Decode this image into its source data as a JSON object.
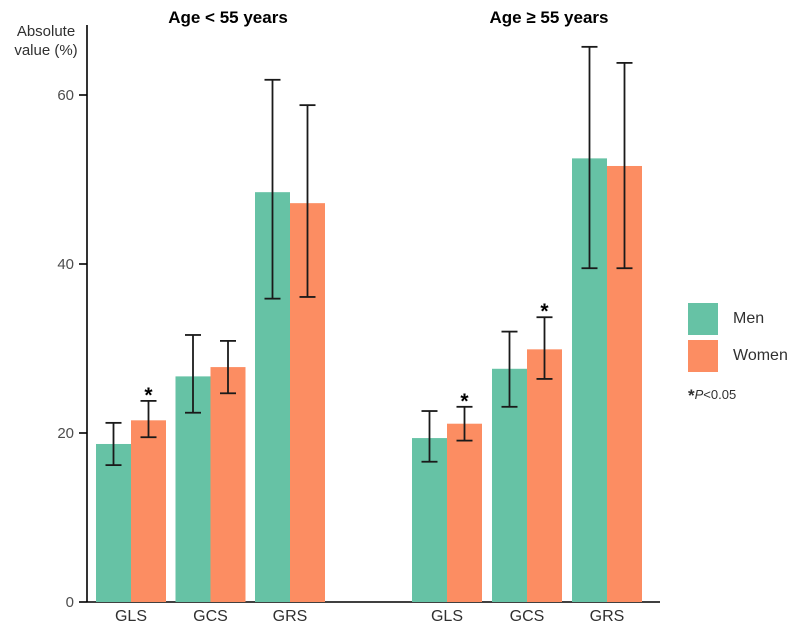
{
  "chart_data": {
    "type": "bar",
    "ylabel": "Absolute value (%)",
    "yticks": [
      0,
      20,
      40,
      60
    ],
    "ylim": [
      0,
      68
    ],
    "grid": false,
    "legend_position": "right",
    "categories": [
      "GLS",
      "GCS",
      "GRS"
    ],
    "panels": [
      {
        "title": "Age < 55 years",
        "series": [
          {
            "name": "Men",
            "color": "#66C2A5",
            "values": [
              18.7,
              26.7,
              48.5
            ],
            "err_low": [
              16.2,
              22.4,
              35.9
            ],
            "err_high": [
              21.2,
              31.6,
              61.8
            ],
            "significant": [
              false,
              false,
              false
            ]
          },
          {
            "name": "Women",
            "color": "#FC8D62",
            "values": [
              21.5,
              27.8,
              47.2
            ],
            "err_low": [
              19.5,
              24.7,
              36.1
            ],
            "err_high": [
              23.8,
              30.9,
              58.8
            ],
            "significant": [
              true,
              false,
              false
            ]
          }
        ]
      },
      {
        "title": "Age ≥ 55 years",
        "series": [
          {
            "name": "Men",
            "color": "#66C2A5",
            "values": [
              19.4,
              27.6,
              52.5
            ],
            "err_low": [
              16.6,
              23.1,
              39.5
            ],
            "err_high": [
              22.6,
              32.0,
              65.7
            ],
            "significant": [
              false,
              false,
              false
            ]
          },
          {
            "name": "Women",
            "color": "#FC8D62",
            "values": [
              21.1,
              29.9,
              51.6
            ],
            "err_low": [
              19.1,
              26.4,
              39.5
            ],
            "err_high": [
              23.1,
              33.7,
              63.8
            ],
            "significant": [
              true,
              true,
              false
            ]
          }
        ]
      }
    ]
  },
  "legend": {
    "items": [
      {
        "label": "Men",
        "color": "#66C2A5"
      },
      {
        "label": "Women",
        "color": "#FC8D62"
      }
    ],
    "note": {
      "star": "*",
      "p": "P",
      "rest": "<0.05"
    }
  },
  "colors": {
    "men": "#66C2A5",
    "women": "#FC8D62",
    "axis": "#000000",
    "error_bar": "#1a1a1a",
    "tick_label": "#4d4d4d",
    "category_label": "#303030"
  }
}
